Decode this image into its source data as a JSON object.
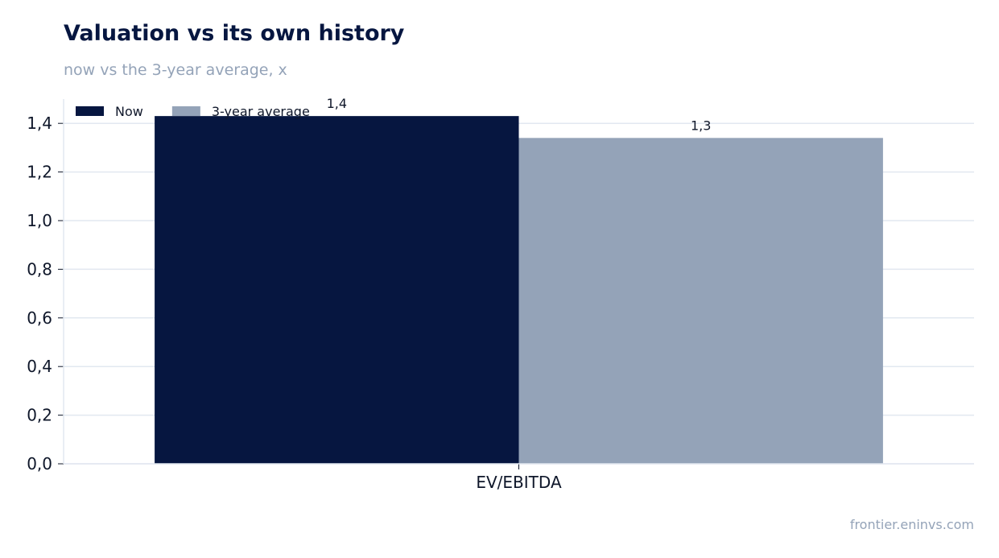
{
  "header": {
    "title": "Valuation vs its own history",
    "subtitle": "now vs the 3-year average, x"
  },
  "footer": {
    "source": "frontier.eninvs.com"
  },
  "chart_data": {
    "type": "bar",
    "categories": [
      "EV/EBITDA"
    ],
    "series": [
      {
        "name": "Now",
        "values": [
          1.43
        ],
        "labels": [
          "1,4"
        ],
        "color": "#061640"
      },
      {
        "name": "3-year average",
        "values": [
          1.34
        ],
        "labels": [
          "1,3"
        ],
        "color": "#94a3b8"
      }
    ],
    "y_ticks": [
      0,
      0.2,
      0.4,
      0.6,
      0.8,
      1.0,
      1.2,
      1.4
    ],
    "y_tick_labels": [
      "0,0",
      "0,2",
      "0,4",
      "0,6",
      "0,8",
      "1,0",
      "1,2",
      "1,4"
    ],
    "ylim": [
      0,
      1.5
    ],
    "grid": true,
    "legend_position": "top-left"
  }
}
